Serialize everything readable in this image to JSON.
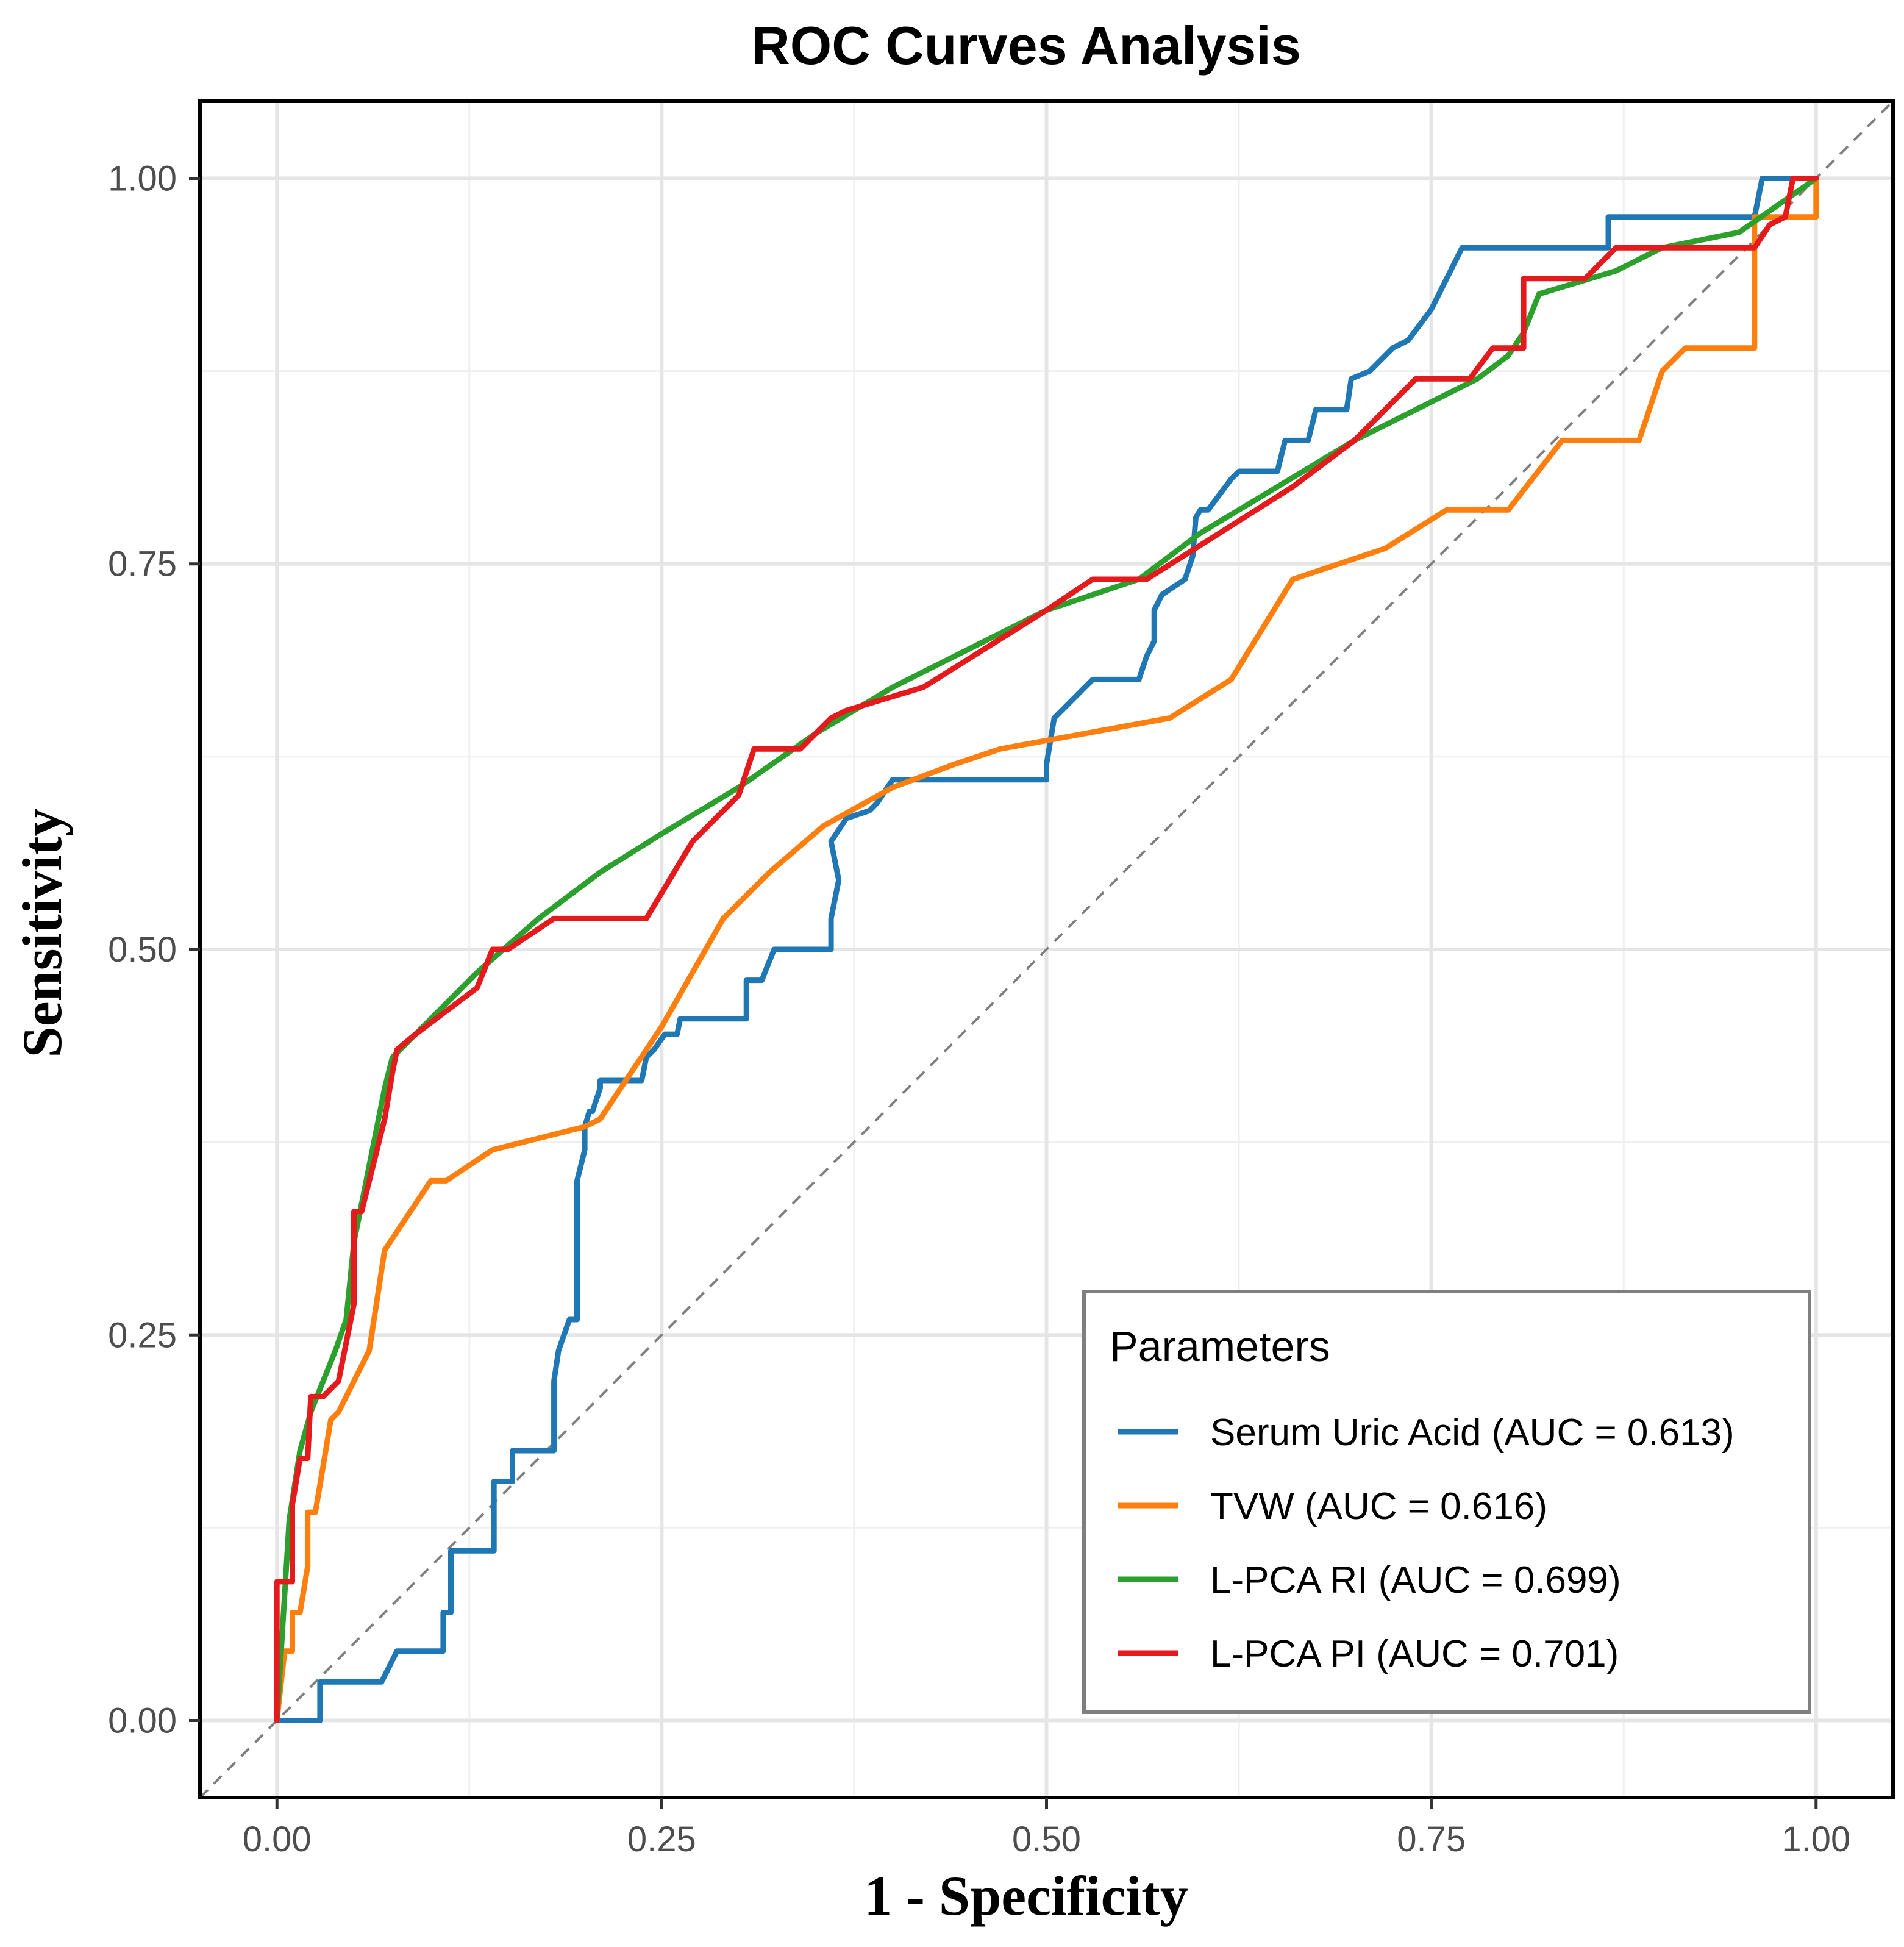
{
  "chart_data": {
    "type": "line",
    "title": "ROC Curves Analysis",
    "xlabel": "1 - Specificity",
    "ylabel": "Sensitivity",
    "xlim": [
      -0.05,
      1.05
    ],
    "ylim": [
      -0.05,
      1.05
    ],
    "x_ticks": [
      0,
      0.25,
      0.5,
      0.75,
      1.0
    ],
    "y_ticks": [
      0,
      0.25,
      0.5,
      0.75,
      1.0
    ],
    "x_tick_labels": [
      "0.00",
      "0.25",
      "0.50",
      "0.75",
      "1.00"
    ],
    "y_tick_labels": [
      "0.00",
      "0.25",
      "0.50",
      "0.75",
      "1.00"
    ],
    "grid": true,
    "reference_line": {
      "style": "dashed",
      "color": "#808080",
      "x": [
        -0.05,
        1.05
      ],
      "y": [
        -0.05,
        1.05
      ]
    },
    "legend": {
      "title": "Parameters",
      "position": "bottom-right"
    },
    "series": [
      {
        "name": "Serum Uric Acid",
        "label": "Serum Uric Acid (AUC = 0.613)",
        "auc": 0.613,
        "color": "#1f77b4",
        "x": [
          0.0,
          0.028,
          0.028,
          0.068,
          0.078,
          0.108,
          0.108,
          0.113,
          0.113,
          0.141,
          0.141,
          0.153,
          0.153,
          0.162,
          0.18,
          0.18,
          0.183,
          0.19,
          0.195,
          0.195,
          0.2,
          0.2,
          0.203,
          0.205,
          0.21,
          0.21,
          0.237,
          0.24,
          0.245,
          0.252,
          0.26,
          0.262,
          0.27,
          0.305,
          0.305,
          0.315,
          0.323,
          0.36,
          0.36,
          0.365,
          0.36,
          0.37,
          0.385,
          0.39,
          0.4,
          0.4,
          0.405,
          0.5,
          0.5,
          0.505,
          0.51,
          0.53,
          0.56,
          0.565,
          0.57,
          0.57,
          0.575,
          0.59,
          0.595,
          0.597,
          0.6,
          0.605,
          0.62,
          0.625,
          0.65,
          0.655,
          0.67,
          0.675,
          0.695,
          0.698,
          0.71,
          0.725,
          0.735,
          0.75,
          0.77,
          0.805,
          0.865,
          0.865,
          0.96,
          0.965,
          1.0
        ],
        "y": [
          0.0,
          0.0,
          0.025,
          0.025,
          0.045,
          0.045,
          0.07,
          0.07,
          0.11,
          0.11,
          0.155,
          0.155,
          0.175,
          0.175,
          0.175,
          0.22,
          0.24,
          0.26,
          0.26,
          0.35,
          0.37,
          0.385,
          0.395,
          0.395,
          0.41,
          0.415,
          0.415,
          0.43,
          0.435,
          0.445,
          0.445,
          0.455,
          0.455,
          0.455,
          0.48,
          0.48,
          0.5,
          0.5,
          0.52,
          0.545,
          0.57,
          0.585,
          0.59,
          0.595,
          0.61,
          0.61,
          0.61,
          0.61,
          0.62,
          0.65,
          0.655,
          0.675,
          0.675,
          0.69,
          0.7,
          0.72,
          0.73,
          0.74,
          0.755,
          0.78,
          0.785,
          0.785,
          0.805,
          0.81,
          0.81,
          0.83,
          0.83,
          0.85,
          0.85,
          0.87,
          0.875,
          0.89,
          0.895,
          0.915,
          0.955,
          0.955,
          0.955,
          0.975,
          0.975,
          1.0,
          1.0
        ]
      },
      {
        "name": "TVW",
        "label": "TVW (AUC = 0.616)",
        "auc": 0.616,
        "color": "#ff7f0e",
        "x": [
          0.0,
          0.005,
          0.01,
          0.01,
          0.015,
          0.02,
          0.02,
          0.025,
          0.03,
          0.035,
          0.04,
          0.06,
          0.07,
          0.1,
          0.11,
          0.14,
          0.2,
          0.21,
          0.25,
          0.29,
          0.32,
          0.355,
          0.4,
          0.44,
          0.47,
          0.58,
          0.62,
          0.66,
          0.72,
          0.76,
          0.8,
          0.835,
          0.885,
          0.9,
          0.915,
          0.96,
          0.96,
          0.975,
          1.0,
          1.0
        ],
        "y": [
          0.0,
          0.045,
          0.045,
          0.07,
          0.07,
          0.1,
          0.135,
          0.135,
          0.165,
          0.195,
          0.2,
          0.24,
          0.305,
          0.35,
          0.35,
          0.37,
          0.385,
          0.39,
          0.45,
          0.52,
          0.55,
          0.58,
          0.605,
          0.62,
          0.63,
          0.65,
          0.675,
          0.74,
          0.76,
          0.785,
          0.785,
          0.83,
          0.83,
          0.875,
          0.89,
          0.89,
          0.975,
          0.975,
          0.975,
          1.0
        ]
      },
      {
        "name": "L-PCA RI",
        "label": "L-PCA RI (AUC = 0.699)",
        "auc": 0.699,
        "color": "#2ca02c",
        "x": [
          0.0,
          0.008,
          0.015,
          0.022,
          0.03,
          0.038,
          0.045,
          0.05,
          0.06,
          0.07,
          0.075,
          0.08,
          0.1,
          0.13,
          0.17,
          0.21,
          0.25,
          0.3,
          0.35,
          0.4,
          0.45,
          0.5,
          0.56,
          0.6,
          0.65,
          0.7,
          0.74,
          0.78,
          0.8,
          0.81,
          0.82,
          0.87,
          0.9,
          0.95,
          1.0
        ],
        "y": [
          0.0,
          0.13,
          0.175,
          0.2,
          0.22,
          0.24,
          0.26,
          0.31,
          0.36,
          0.41,
          0.43,
          0.435,
          0.455,
          0.485,
          0.52,
          0.55,
          0.575,
          0.605,
          0.64,
          0.67,
          0.695,
          0.72,
          0.74,
          0.77,
          0.8,
          0.83,
          0.85,
          0.87,
          0.885,
          0.9,
          0.925,
          0.94,
          0.955,
          0.965,
          1.0
        ]
      },
      {
        "name": "L-PCA PI",
        "label": "L-PCA PI (AUC = 0.701)",
        "auc": 0.701,
        "color": "#e41a1c",
        "x": [
          0.0,
          0.0,
          0.01,
          0.01,
          0.015,
          0.02,
          0.022,
          0.03,
          0.04,
          0.05,
          0.05,
          0.055,
          0.07,
          0.075,
          0.078,
          0.09,
          0.11,
          0.13,
          0.14,
          0.15,
          0.18,
          0.24,
          0.27,
          0.3,
          0.31,
          0.34,
          0.36,
          0.37,
          0.42,
          0.5,
          0.53,
          0.565,
          0.66,
          0.7,
          0.74,
          0.775,
          0.79,
          0.81,
          0.81,
          0.85,
          0.87,
          0.92,
          0.96,
          0.97,
          0.98,
          0.985,
          1.0,
          1.0
        ],
        "y": [
          0.0,
          0.09,
          0.09,
          0.14,
          0.17,
          0.17,
          0.21,
          0.21,
          0.22,
          0.27,
          0.33,
          0.33,
          0.39,
          0.42,
          0.435,
          0.445,
          0.46,
          0.475,
          0.5,
          0.5,
          0.52,
          0.52,
          0.57,
          0.6,
          0.63,
          0.63,
          0.65,
          0.655,
          0.67,
          0.72,
          0.74,
          0.74,
          0.8,
          0.83,
          0.87,
          0.87,
          0.89,
          0.89,
          0.935,
          0.935,
          0.955,
          0.955,
          0.955,
          0.97,
          0.975,
          1.0,
          1.0,
          1.0
        ]
      }
    ]
  }
}
